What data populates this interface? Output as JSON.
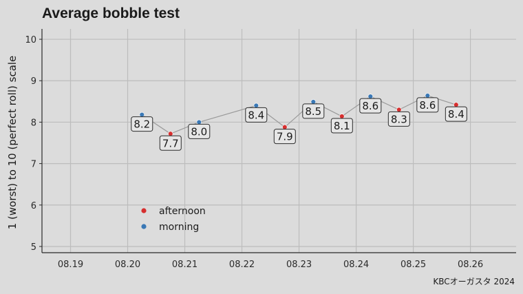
{
  "chart_data": {
    "type": "line",
    "title": "Average bobble test",
    "xlabel": "",
    "ylabel": "1 (worst) to 10 (perfect roll) scale",
    "caption": "KBCオーガスタ 2024",
    "xlim": [
      0.185,
      0.268
    ],
    "ylim": [
      4.85,
      10.25
    ],
    "x_ticks": [
      {
        "value": 0.19,
        "label": "08.19"
      },
      {
        "value": 0.2,
        "label": "08.20"
      },
      {
        "value": 0.21,
        "label": "08.21"
      },
      {
        "value": 0.22,
        "label": "08.22"
      },
      {
        "value": 0.23,
        "label": "08.23"
      },
      {
        "value": 0.24,
        "label": "08.24"
      },
      {
        "value": 0.25,
        "label": "08.25"
      },
      {
        "value": 0.26,
        "label": "08.26"
      }
    ],
    "y_ticks": [
      5,
      6,
      7,
      8,
      9,
      10
    ],
    "grid": true,
    "legend": {
      "position": "inside-bottom-left"
    },
    "groups": [
      {
        "name": "afternoon",
        "color": "#d62f2f"
      },
      {
        "name": "morning",
        "color": "#3a78b5"
      }
    ],
    "points": [
      {
        "x": 0.2025,
        "y": 8.18,
        "label": "8.2",
        "group": "morning"
      },
      {
        "x": 0.2075,
        "y": 7.72,
        "label": "7.7",
        "group": "afternoon"
      },
      {
        "x": 0.2125,
        "y": 8.0,
        "label": "8.0",
        "group": "morning"
      },
      {
        "x": 0.2225,
        "y": 8.4,
        "label": "8.4",
        "group": "morning"
      },
      {
        "x": 0.2275,
        "y": 7.88,
        "label": "7.9",
        "group": "afternoon"
      },
      {
        "x": 0.2325,
        "y": 8.49,
        "label": "8.5",
        "group": "morning"
      },
      {
        "x": 0.2375,
        "y": 8.14,
        "label": "8.1",
        "group": "afternoon"
      },
      {
        "x": 0.2425,
        "y": 8.62,
        "label": "8.6",
        "group": "morning"
      },
      {
        "x": 0.2475,
        "y": 8.3,
        "label": "8.3",
        "group": "afternoon"
      },
      {
        "x": 0.2525,
        "y": 8.64,
        "label": "8.6",
        "group": "morning"
      },
      {
        "x": 0.2575,
        "y": 8.42,
        "label": "8.4",
        "group": "afternoon"
      }
    ]
  }
}
